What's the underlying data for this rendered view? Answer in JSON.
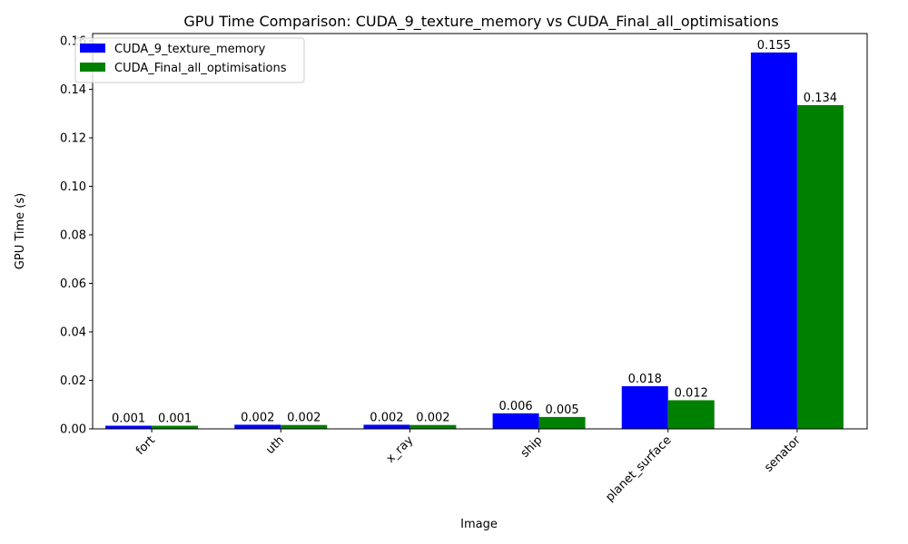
{
  "chart_data": {
    "type": "bar",
    "title": "GPU Time Comparison: CUDA_9_texture_memory vs CUDA_Final_all_optimisations",
    "xlabel": "Image",
    "ylabel": "GPU Time (s)",
    "categories": [
      "fort",
      "uth",
      "x_ray",
      "ship",
      "planet_surface",
      "senator"
    ],
    "series": [
      {
        "name": "CUDA_9_texture_memory",
        "color": "#0000ff",
        "values": [
          0.0013,
          0.0017,
          0.0017,
          0.0064,
          0.0176,
          0.1552
        ],
        "labels": [
          "0.001",
          "0.002",
          "0.002",
          "0.006",
          "0.018",
          "0.155"
        ]
      },
      {
        "name": "CUDA_Final_all_optimisations",
        "color": "#008000",
        "values": [
          0.0013,
          0.0016,
          0.0016,
          0.0049,
          0.0118,
          0.1335
        ],
        "labels": [
          "0.001",
          "0.002",
          "0.002",
          "0.005",
          "0.012",
          "0.134"
        ]
      }
    ],
    "ylim": [
      0,
      0.163
    ],
    "yticks": [
      0.0,
      0.02,
      0.04,
      0.06,
      0.08,
      0.1,
      0.12,
      0.14,
      0.16
    ],
    "ytick_labels": [
      "0.00",
      "0.02",
      "0.04",
      "0.06",
      "0.08",
      "0.10",
      "0.12",
      "0.14",
      "0.16"
    ],
    "grid": false,
    "legend_position": "top-left"
  }
}
